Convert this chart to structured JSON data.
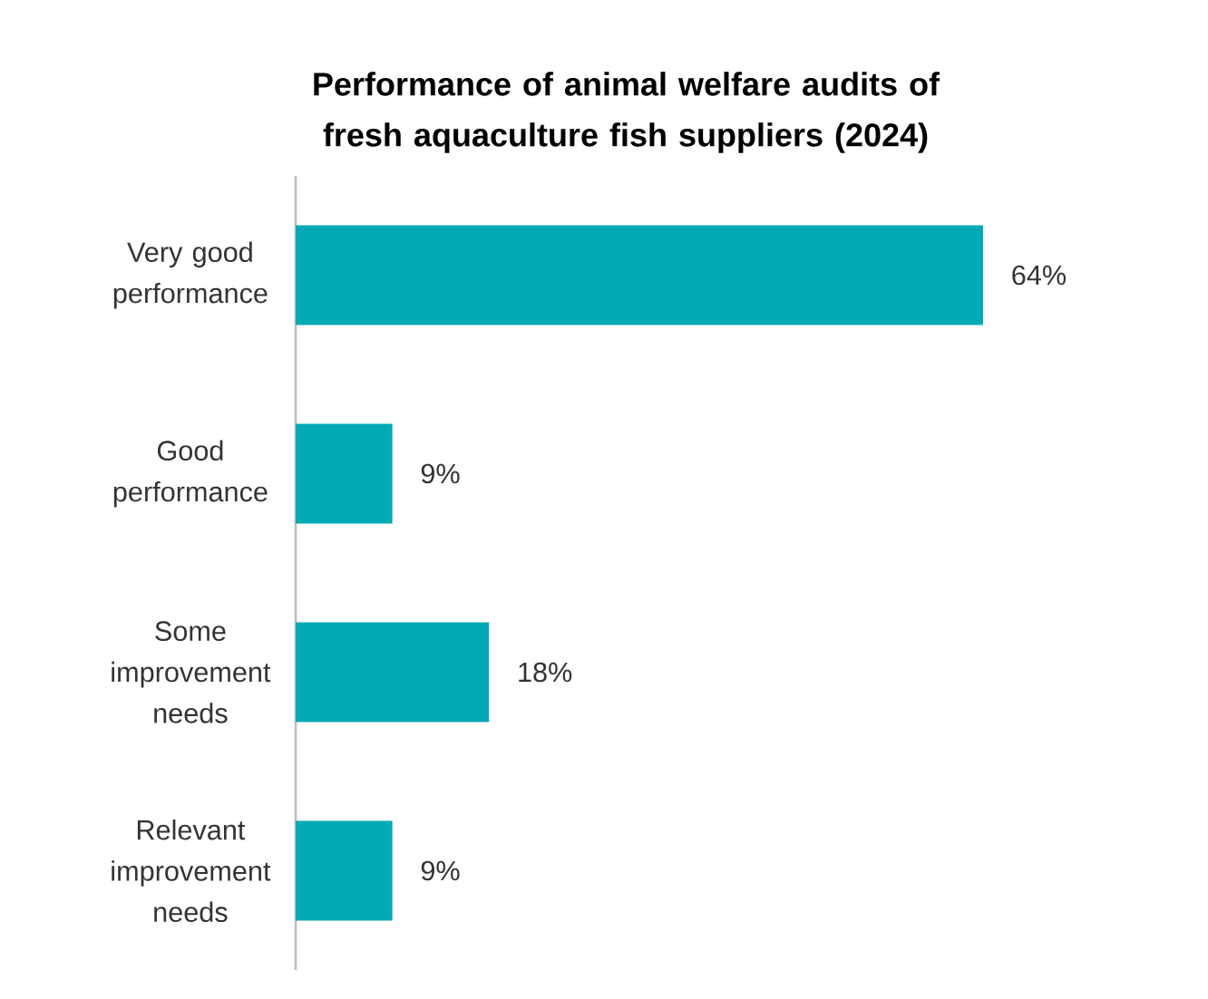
{
  "chart_data": {
    "type": "bar",
    "orientation": "horizontal",
    "title": "Performance of animal welfare audits of fresh aquaculture fish suppliers (2024)",
    "categories": [
      "Very good performance",
      "Good performance",
      "Some improvement needs",
      "Relevant improvement needs"
    ],
    "values": [
      64,
      9,
      18,
      9
    ],
    "value_labels": [
      "64%",
      "9%",
      "18%",
      "9%"
    ],
    "color": "#00a9b4"
  }
}
